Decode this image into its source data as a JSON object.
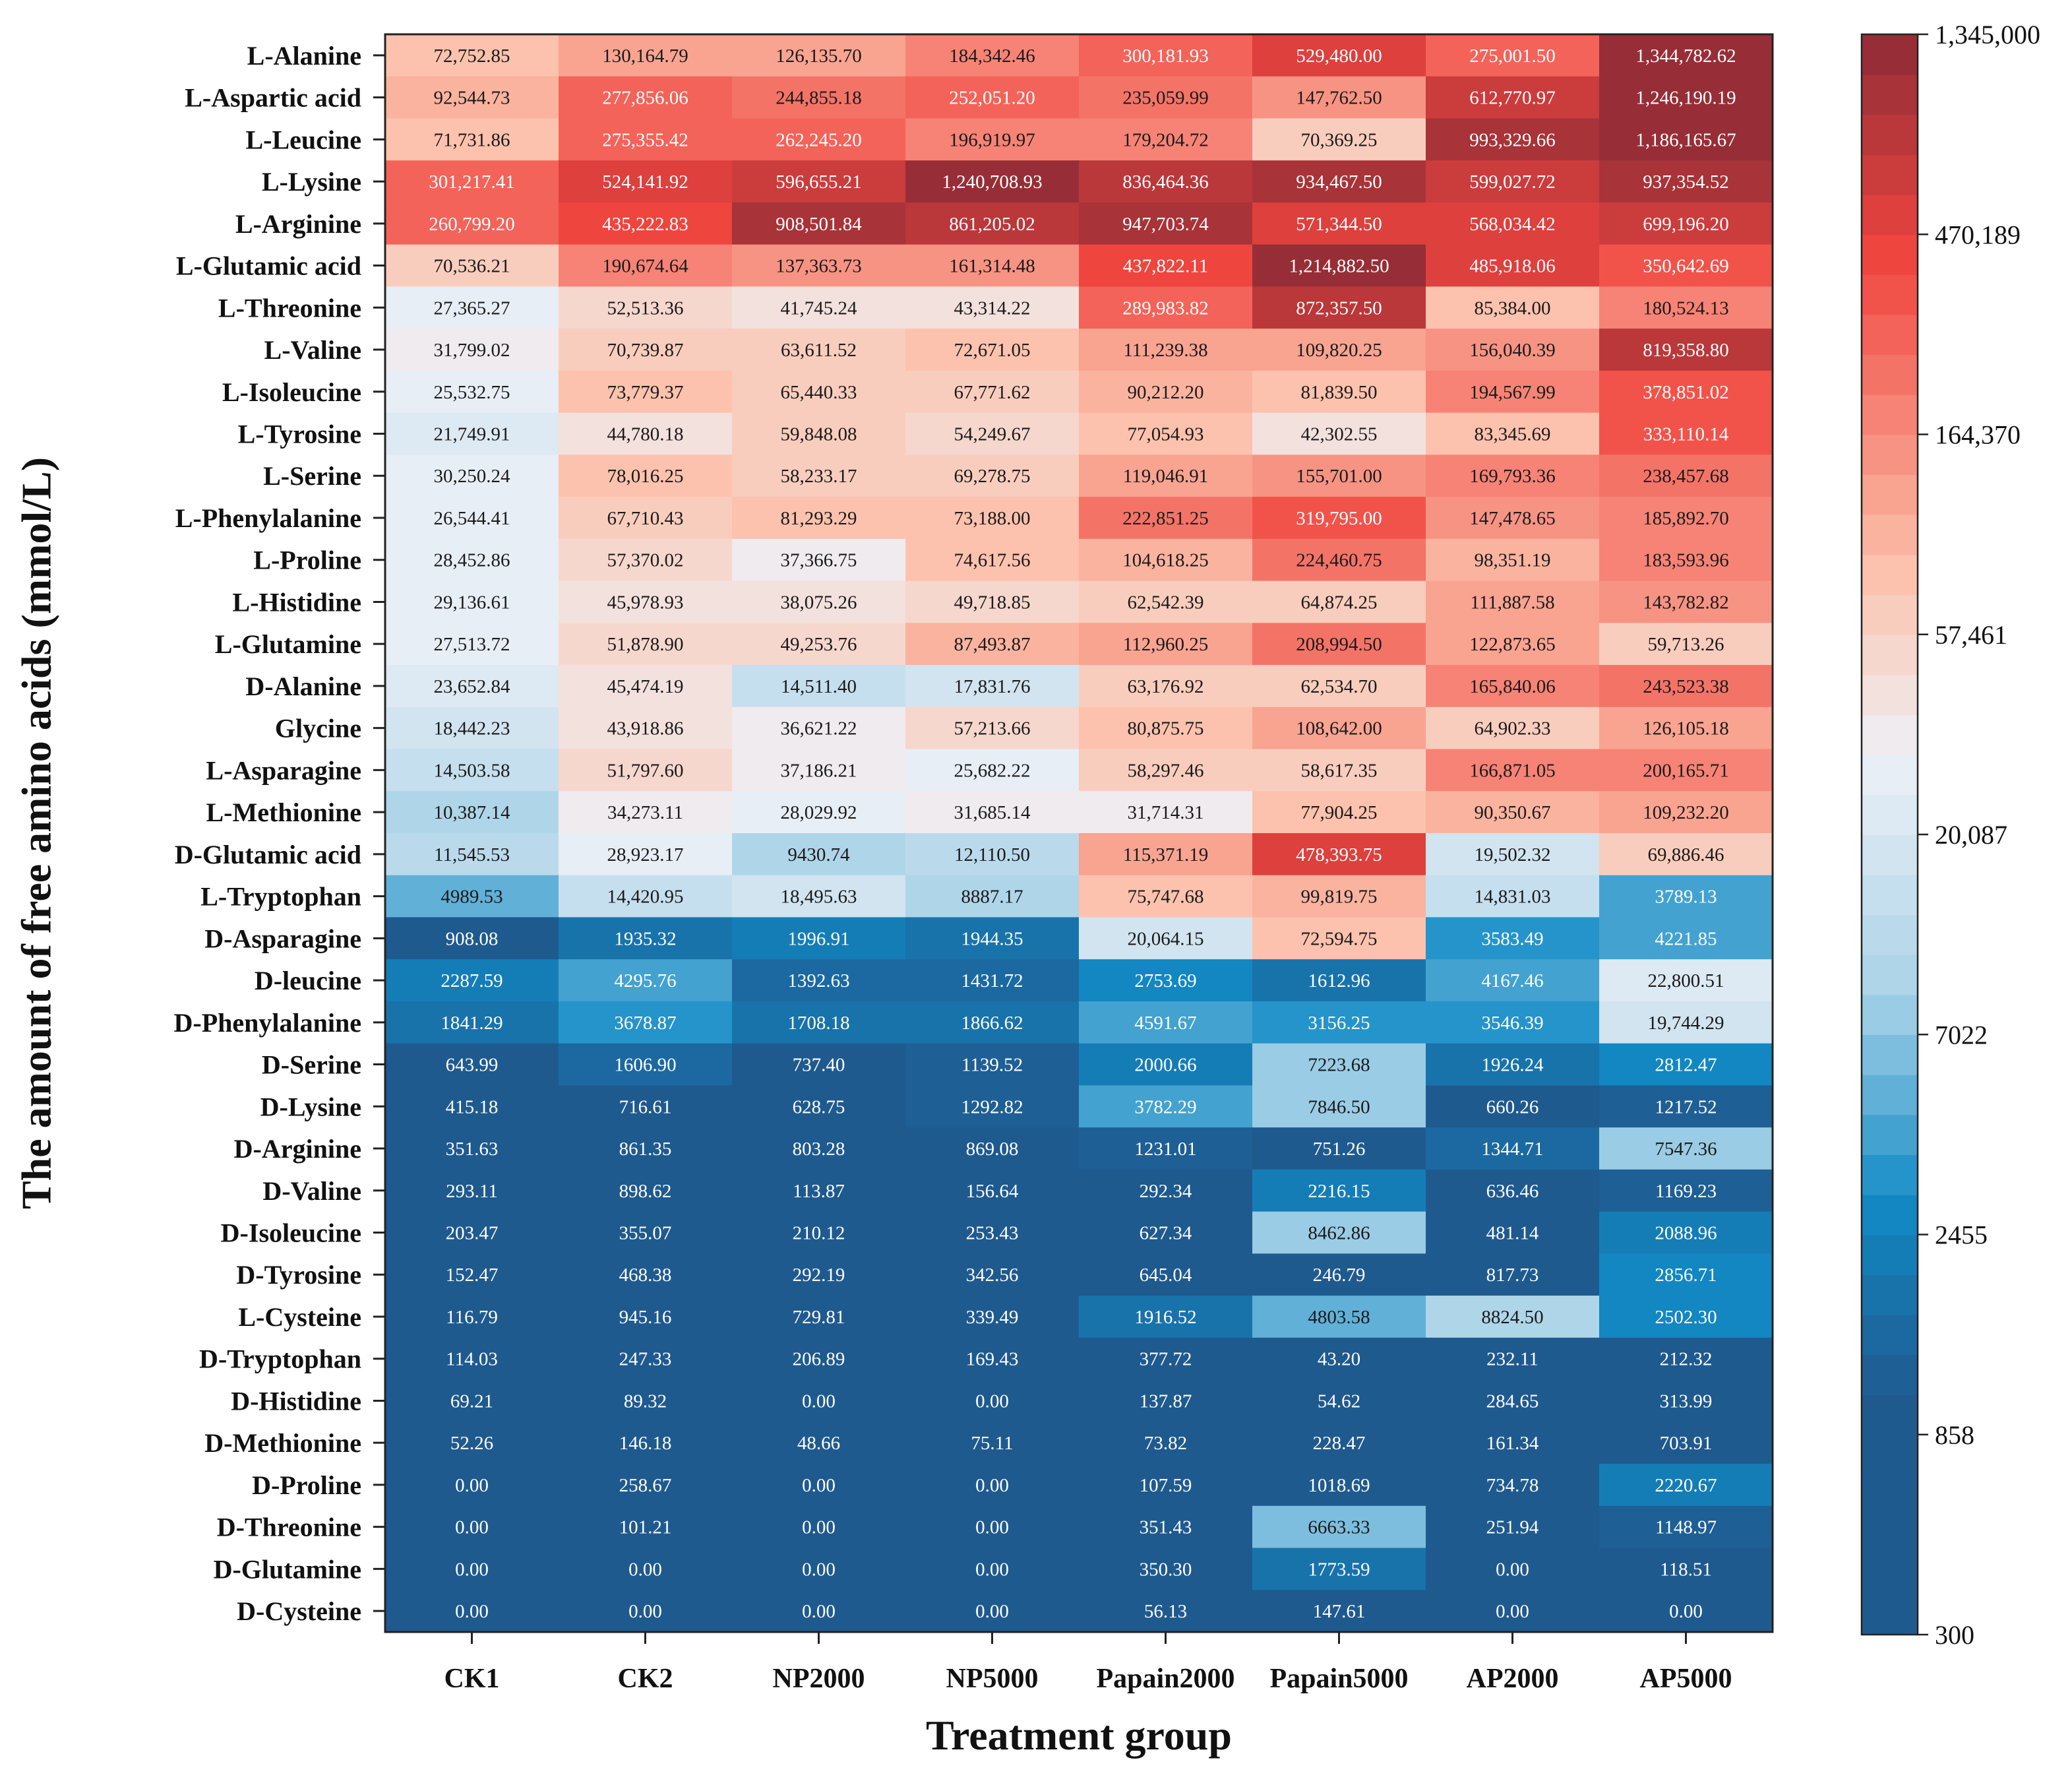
{
  "chart_data": {
    "type": "heatmap",
    "title": "",
    "xlabel": "Treatment group",
    "ylabel": "The amount of free amino acids (mmol/L)",
    "columns": [
      "CK1",
      "CK2",
      "NP2000",
      "NP5000",
      "Papain2000",
      "Papain5000",
      "AP2000",
      "AP5000"
    ],
    "rows": [
      {
        "name": "L-Alanine",
        "values": [
          "72,752.85",
          "130,164.79",
          "126,135.70",
          "184,342.46",
          "300,181.93",
          "529,480.00",
          "275,001.50",
          "1,344,782.62"
        ]
      },
      {
        "name": "L-Aspartic acid",
        "values": [
          "92,544.73",
          "277,856.06",
          "244,855.18",
          "252,051.20",
          "235,059.99",
          "147,762.50",
          "612,770.97",
          "1,246,190.19"
        ]
      },
      {
        "name": "L-Leucine",
        "values": [
          "71,731.86",
          "275,355.42",
          "262,245.20",
          "196,919.97",
          "179,204.72",
          "70,369.25",
          "993,329.66",
          "1,186,165.67"
        ]
      },
      {
        "name": "L-Lysine",
        "values": [
          "301,217.41",
          "524,141.92",
          "596,655.21",
          "1,240,708.93",
          "836,464.36",
          "934,467.50",
          "599,027.72",
          "937,354.52"
        ]
      },
      {
        "name": "L-Arginine",
        "values": [
          "260,799.20",
          "435,222.83",
          "908,501.84",
          "861,205.02",
          "947,703.74",
          "571,344.50",
          "568,034.42",
          "699,196.20"
        ]
      },
      {
        "name": "L-Glutamic acid",
        "values": [
          "70,536.21",
          "190,674.64",
          "137,363.73",
          "161,314.48",
          "437,822.11",
          "1,214,882.50",
          "485,918.06",
          "350,642.69"
        ]
      },
      {
        "name": "L-Threonine",
        "values": [
          "27,365.27",
          "52,513.36",
          "41,745.24",
          "43,314.22",
          "289,983.82",
          "872,357.50",
          "85,384.00",
          "180,524.13"
        ]
      },
      {
        "name": "L-Valine",
        "values": [
          "31,799.02",
          "70,739.87",
          "63,611.52",
          "72,671.05",
          "111,239.38",
          "109,820.25",
          "156,040.39",
          "819,358.80"
        ]
      },
      {
        "name": "L-Isoleucine",
        "values": [
          "25,532.75",
          "73,779.37",
          "65,440.33",
          "67,771.62",
          "90,212.20",
          "81,839.50",
          "194,567.99",
          "378,851.02"
        ]
      },
      {
        "name": "L-Tyrosine",
        "values": [
          "21,749.91",
          "44,780.18",
          "59,848.08",
          "54,249.67",
          "77,054.93",
          "42,302.55",
          "83,345.69",
          "333,110.14"
        ]
      },
      {
        "name": "L-Serine",
        "values": [
          "30,250.24",
          "78,016.25",
          "58,233.17",
          "69,278.75",
          "119,046.91",
          "155,701.00",
          "169,793.36",
          "238,457.68"
        ]
      },
      {
        "name": "L-Phenylalanine",
        "values": [
          "26,544.41",
          "67,710.43",
          "81,293.29",
          "73,188.00",
          "222,851.25",
          "319,795.00",
          "147,478.65",
          "185,892.70"
        ]
      },
      {
        "name": "L-Proline",
        "values": [
          "28,452.86",
          "57,370.02",
          "37,366.75",
          "74,617.56",
          "104,618.25",
          "224,460.75",
          "98,351.19",
          "183,593.96"
        ]
      },
      {
        "name": "L-Histidine",
        "values": [
          "29,136.61",
          "45,978.93",
          "38,075.26",
          "49,718.85",
          "62,542.39",
          "64,874.25",
          "111,887.58",
          "143,782.82"
        ]
      },
      {
        "name": "L-Glutamine",
        "values": [
          "27,513.72",
          "51,878.90",
          "49,253.76",
          "87,493.87",
          "112,960.25",
          "208,994.50",
          "122,873.65",
          "59,713.26"
        ]
      },
      {
        "name": "D-Alanine",
        "values": [
          "23,652.84",
          "45,474.19",
          "14,511.40",
          "17,831.76",
          "63,176.92",
          "62,534.70",
          "165,840.06",
          "243,523.38"
        ]
      },
      {
        "name": "Glycine",
        "values": [
          "18,442.23",
          "43,918.86",
          "36,621.22",
          "57,213.66",
          "80,875.75",
          "108,642.00",
          "64,902.33",
          "126,105.18"
        ]
      },
      {
        "name": "L-Asparagine",
        "values": [
          "14,503.58",
          "51,797.60",
          "37,186.21",
          "25,682.22",
          "58,297.46",
          "58,617.35",
          "166,871.05",
          "200,165.71"
        ]
      },
      {
        "name": "L-Methionine",
        "values": [
          "10,387.14",
          "34,273.11",
          "28,029.92",
          "31,685.14",
          "31,714.31",
          "77,904.25",
          "90,350.67",
          "109,232.20"
        ]
      },
      {
        "name": "D-Glutamic acid",
        "values": [
          "11,545.53",
          "28,923.17",
          "9430.74",
          "12,110.50",
          "115,371.19",
          "478,393.75",
          "19,502.32",
          "69,886.46"
        ]
      },
      {
        "name": "L-Tryptophan",
        "values": [
          "4989.53",
          "14,420.95",
          "18,495.63",
          "8887.17",
          "75,747.68",
          "99,819.75",
          "14,831.03",
          "3789.13"
        ]
      },
      {
        "name": "D-Asparagine",
        "values": [
          "908.08",
          "1935.32",
          "1996.91",
          "1944.35",
          "20,064.15",
          "72,594.75",
          "3583.49",
          "4221.85"
        ]
      },
      {
        "name": "D-leucine",
        "values": [
          "2287.59",
          "4295.76",
          "1392.63",
          "1431.72",
          "2753.69",
          "1612.96",
          "4167.46",
          "22,800.51"
        ]
      },
      {
        "name": "D-Phenylalanine",
        "values": [
          "1841.29",
          "3678.87",
          "1708.18",
          "1866.62",
          "4591.67",
          "3156.25",
          "3546.39",
          "19,744.29"
        ]
      },
      {
        "name": "D-Serine",
        "values": [
          "643.99",
          "1606.90",
          "737.40",
          "1139.52",
          "2000.66",
          "7223.68",
          "1926.24",
          "2812.47"
        ]
      },
      {
        "name": "D-Lysine",
        "values": [
          "415.18",
          "716.61",
          "628.75",
          "1292.82",
          "3782.29",
          "7846.50",
          "660.26",
          "1217.52"
        ]
      },
      {
        "name": "D-Arginine",
        "values": [
          "351.63",
          "861.35",
          "803.28",
          "869.08",
          "1231.01",
          "751.26",
          "1344.71",
          "7547.36"
        ]
      },
      {
        "name": "D-Valine",
        "values": [
          "293.11",
          "898.62",
          "113.87",
          "156.64",
          "292.34",
          "2216.15",
          "636.46",
          "1169.23"
        ]
      },
      {
        "name": "D-Isoleucine",
        "values": [
          "203.47",
          "355.07",
          "210.12",
          "253.43",
          "627.34",
          "8462.86",
          "481.14",
          "2088.96"
        ]
      },
      {
        "name": "D-Tyrosine",
        "values": [
          "152.47",
          "468.38",
          "292.19",
          "342.56",
          "645.04",
          "246.79",
          "817.73",
          "2856.71"
        ]
      },
      {
        "name": "L-Cysteine",
        "values": [
          "116.79",
          "945.16",
          "729.81",
          "339.49",
          "1916.52",
          "4803.58",
          "8824.50",
          "2502.30"
        ]
      },
      {
        "name": "D-Tryptophan",
        "values": [
          "114.03",
          "247.33",
          "206.89",
          "169.43",
          "377.72",
          "43.20",
          "232.11",
          "212.32"
        ]
      },
      {
        "name": "D-Histidine",
        "values": [
          "69.21",
          "89.32",
          "0.00",
          "0.00",
          "137.87",
          "54.62",
          "284.65",
          "313.99"
        ]
      },
      {
        "name": "D-Methionine",
        "values": [
          "52.26",
          "146.18",
          "48.66",
          "75.11",
          "73.82",
          "228.47",
          "161.34",
          "703.91"
        ]
      },
      {
        "name": "D-Proline",
        "values": [
          "0.00",
          "258.67",
          "0.00",
          "0.00",
          "107.59",
          "1018.69",
          "734.78",
          "2220.67"
        ]
      },
      {
        "name": "D-Threonine",
        "values": [
          "0.00",
          "101.21",
          "0.00",
          "0.00",
          "351.43",
          "6663.33",
          "251.94",
          "1148.97"
        ]
      },
      {
        "name": "D-Glutamine",
        "values": [
          "0.00",
          "0.00",
          "0.00",
          "0.00",
          "350.30",
          "1773.59",
          "0.00",
          "118.51"
        ]
      },
      {
        "name": "D-Cysteine",
        "values": [
          "0.00",
          "0.00",
          "0.00",
          "0.00",
          "56.13",
          "147.61",
          "0.00",
          "0.00"
        ]
      }
    ],
    "colorbar": {
      "scale": "log",
      "min": 300,
      "max": 1345000,
      "ticks": [
        "1,345,000",
        "470,189",
        "164,370",
        "57,461",
        "20,087",
        "7022",
        "2455",
        "858",
        "300"
      ]
    },
    "colors": {
      "low": "#1f5a8f",
      "mid_low": "#118ac5",
      "light_blue": "#a9d3e8",
      "mid": "#eef0f6",
      "peach": "#fcc4ae",
      "red": "#f0453f",
      "high": "#8e2c36"
    }
  }
}
